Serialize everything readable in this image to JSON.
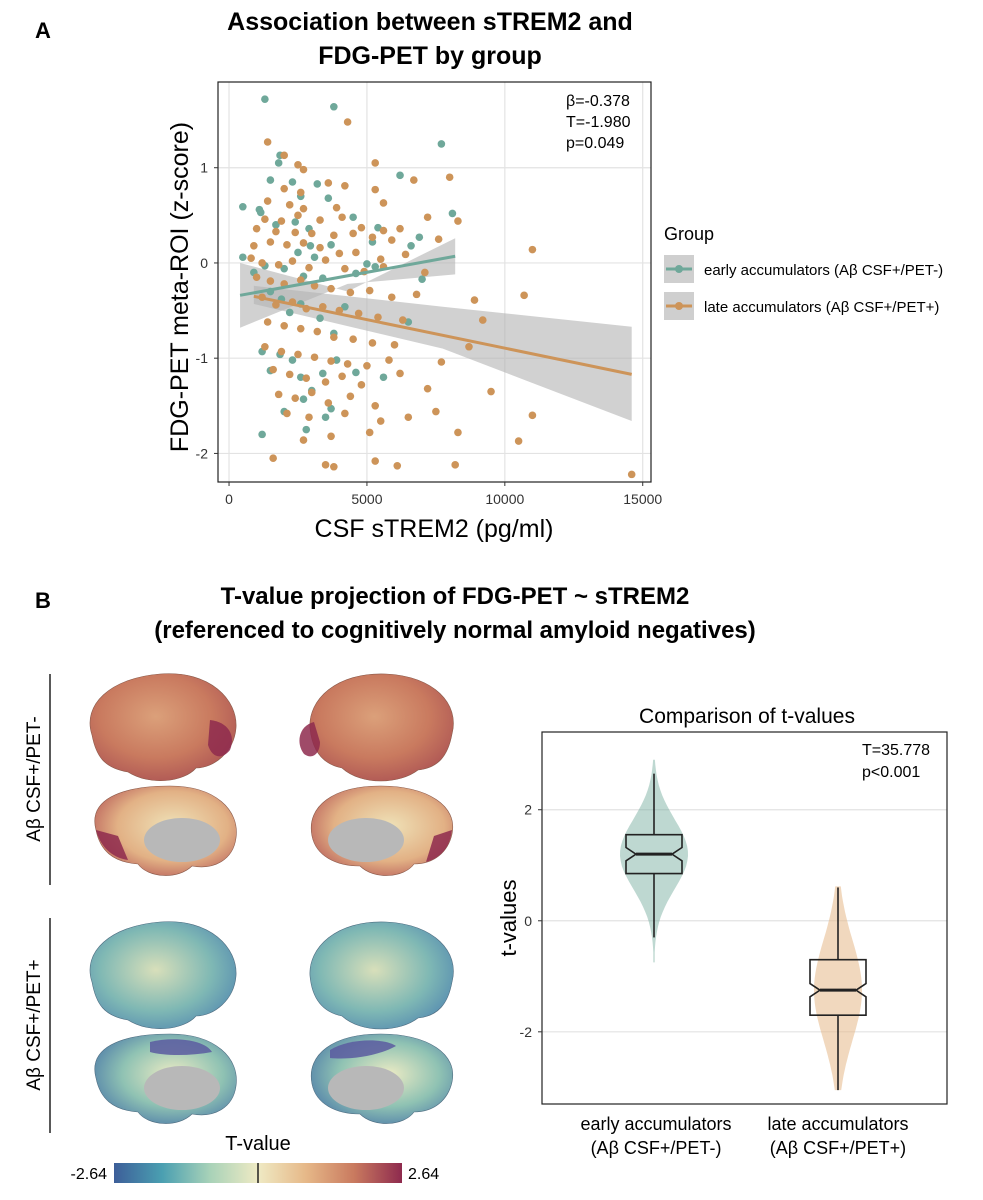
{
  "panel_a": {
    "letter": "A",
    "title_line1": "Association between sTREM2 and",
    "title_line2": "FDG-PET by group",
    "stats": [
      "β=-0.378",
      "T=-1.980",
      "p=0.049"
    ],
    "legend_title": "Group",
    "colors": {
      "early": "#6fa89a",
      "late": "#cd9459",
      "band": "#b3b3b3"
    }
  },
  "panel_b": {
    "letter": "B",
    "title_line1": "T-value projection of FDG-PET ~ sTREM2",
    "title_line2": "(referenced to cognitively normal amyloid negatives)",
    "row_label_top": "Aβ CSF+/PET-",
    "row_label_bottom": "Aβ CSF+/PET+",
    "colorbar_label": "T-value",
    "colorbar_min": "-2.64",
    "colorbar_max": "2.64",
    "colorbar_colors": [
      "#3d5e99",
      "#4a9fb1",
      "#a8d2b8",
      "#efeac4",
      "#e6b888",
      "#c97a5f",
      "#8e2a4e"
    ]
  },
  "chart_data": [
    {
      "type": "scatter",
      "title": "Association between sTREM2 and FDG-PET by group",
      "xlabel": "CSF sTREM2 (pg/ml)",
      "ylabel": "FDG-PET meta-ROI (z-score)",
      "xlim": [
        -400,
        15300
      ],
      "ylim": [
        -2.3,
        1.9
      ],
      "xticks": [
        0,
        5000,
        10000,
        15000
      ],
      "yticks": [
        -2,
        -1,
        0,
        1
      ],
      "grid": true,
      "legend_title": "Group",
      "legend_position": "right",
      "annotation": [
        "β=-0.378",
        "T=-1.980",
        "p=0.049"
      ],
      "series": [
        {
          "name": "early accumulators (Aβ CSF+/PET-)",
          "color": "#6fa89a",
          "fit": {
            "x": [
              400,
              8200
            ],
            "y": [
              -0.34,
              0.07
            ],
            "band_lo": [
              -0.68,
              -0.12
            ],
            "band_hi": [
              0.0,
              0.26
            ],
            "band_mid": [
              -0.3,
              -0.22
            ]
          },
          "points": [
            [
              1300,
              1.72
            ],
            [
              3800,
              1.64
            ],
            [
              7700,
              1.25
            ],
            [
              1850,
              1.13
            ],
            [
              1800,
              1.05
            ],
            [
              1500,
              0.87
            ],
            [
              2300,
              0.85
            ],
            [
              2600,
              0.7
            ],
            [
              3200,
              0.83
            ],
            [
              6200,
              0.92
            ],
            [
              3600,
              0.68
            ],
            [
              500,
              0.59
            ],
            [
              1100,
              0.56
            ],
            [
              1150,
              0.53
            ],
            [
              1700,
              0.4
            ],
            [
              2400,
              0.43
            ],
            [
              2900,
              0.36
            ],
            [
              8100,
              0.52
            ],
            [
              4500,
              0.48
            ],
            [
              5400,
              0.37
            ],
            [
              5200,
              0.22
            ],
            [
              6600,
              0.18
            ],
            [
              3700,
              0.19
            ],
            [
              2500,
              0.11
            ],
            [
              2950,
              0.18
            ],
            [
              3100,
              0.06
            ],
            [
              1300,
              -0.03
            ],
            [
              2000,
              -0.06
            ],
            [
              900,
              -0.1
            ],
            [
              2700,
              -0.14
            ],
            [
              3400,
              -0.16
            ],
            [
              4600,
              -0.11
            ],
            [
              5000,
              -0.01
            ],
            [
              5300,
              -0.04
            ],
            [
              6900,
              0.27
            ],
            [
              7000,
              -0.17
            ],
            [
              500,
              0.06
            ],
            [
              1500,
              -0.3
            ],
            [
              1900,
              -0.38
            ],
            [
              2200,
              -0.52
            ],
            [
              2600,
              -0.43
            ],
            [
              3300,
              -0.58
            ],
            [
              3800,
              -0.74
            ],
            [
              4200,
              -0.46
            ],
            [
              6500,
              -0.62
            ],
            [
              1200,
              -0.93
            ],
            [
              1850,
              -0.96
            ],
            [
              2300,
              -1.02
            ],
            [
              2600,
              -1.2
            ],
            [
              3000,
              -1.34
            ],
            [
              3400,
              -1.16
            ],
            [
              3900,
              -1.02
            ],
            [
              4600,
              -1.15
            ],
            [
              5600,
              -1.2
            ],
            [
              1500,
              -1.13
            ],
            [
              2700,
              -1.43
            ],
            [
              3700,
              -1.53
            ],
            [
              2000,
              -1.56
            ],
            [
              2800,
              -1.75
            ],
            [
              3500,
              -1.62
            ],
            [
              1200,
              -1.8
            ]
          ]
        },
        {
          "name": "late accumulators (Aβ CSF+/PET+)",
          "color": "#cd9459",
          "fit": {
            "x": [
              900,
              14600
            ],
            "y": [
              -0.35,
              -1.17
            ],
            "band_lo": [
              -0.43,
              -1.66
            ],
            "band_hi": [
              -0.24,
              -0.67
            ],
            "band_mid": [
              -0.46,
              -0.9
            ]
          },
          "points": [
            [
              4300,
              1.48
            ],
            [
              1400,
              1.27
            ],
            [
              2000,
              1.13
            ],
            [
              2500,
              1.03
            ],
            [
              2700,
              0.98
            ],
            [
              5300,
              1.05
            ],
            [
              6700,
              0.87
            ],
            [
              8000,
              0.9
            ],
            [
              2000,
              0.78
            ],
            [
              2600,
              0.74
            ],
            [
              3600,
              0.84
            ],
            [
              4200,
              0.81
            ],
            [
              5300,
              0.77
            ],
            [
              1400,
              0.65
            ],
            [
              2200,
              0.61
            ],
            [
              2700,
              0.57
            ],
            [
              3900,
              0.58
            ],
            [
              5600,
              0.63
            ],
            [
              7200,
              0.48
            ],
            [
              1300,
              0.46
            ],
            [
              1900,
              0.44
            ],
            [
              2500,
              0.5
            ],
            [
              3300,
              0.45
            ],
            [
              4100,
              0.48
            ],
            [
              4800,
              0.37
            ],
            [
              5600,
              0.34
            ],
            [
              6200,
              0.36
            ],
            [
              8300,
              0.44
            ],
            [
              1000,
              0.36
            ],
            [
              1700,
              0.33
            ],
            [
              2400,
              0.32
            ],
            [
              3000,
              0.31
            ],
            [
              3800,
              0.29
            ],
            [
              4500,
              0.31
            ],
            [
              5200,
              0.27
            ],
            [
              5900,
              0.24
            ],
            [
              7600,
              0.25
            ],
            [
              11000,
              0.14
            ],
            [
              900,
              0.18
            ],
            [
              1500,
              0.22
            ],
            [
              2100,
              0.19
            ],
            [
              2700,
              0.21
            ],
            [
              3300,
              0.16
            ],
            [
              4000,
              0.1
            ],
            [
              4600,
              0.11
            ],
            [
              5500,
              0.04
            ],
            [
              6400,
              0.09
            ],
            [
              800,
              0.05
            ],
            [
              1200,
              0.0
            ],
            [
              1800,
              -0.02
            ],
            [
              2300,
              0.02
            ],
            [
              2900,
              -0.05
            ],
            [
              3500,
              0.03
            ],
            [
              4200,
              -0.06
            ],
            [
              4900,
              -0.09
            ],
            [
              5600,
              -0.04
            ],
            [
              7100,
              -0.1
            ],
            [
              10700,
              -0.34
            ],
            [
              1000,
              -0.15
            ],
            [
              1500,
              -0.19
            ],
            [
              2000,
              -0.22
            ],
            [
              2600,
              -0.18
            ],
            [
              3100,
              -0.24
            ],
            [
              3700,
              -0.27
            ],
            [
              4400,
              -0.31
            ],
            [
              5100,
              -0.29
            ],
            [
              5900,
              -0.36
            ],
            [
              6800,
              -0.33
            ],
            [
              8900,
              -0.39
            ],
            [
              1200,
              -0.36
            ],
            [
              1700,
              -0.44
            ],
            [
              2300,
              -0.41
            ],
            [
              2800,
              -0.48
            ],
            [
              3400,
              -0.46
            ],
            [
              4000,
              -0.5
            ],
            [
              4700,
              -0.53
            ],
            [
              5400,
              -0.57
            ],
            [
              6300,
              -0.6
            ],
            [
              9200,
              -0.6
            ],
            [
              1400,
              -0.62
            ],
            [
              2000,
              -0.66
            ],
            [
              2600,
              -0.69
            ],
            [
              3200,
              -0.72
            ],
            [
              3800,
              -0.78
            ],
            [
              4500,
              -0.8
            ],
            [
              5200,
              -0.84
            ],
            [
              6000,
              -0.86
            ],
            [
              8700,
              -0.88
            ],
            [
              1300,
              -0.88
            ],
            [
              1900,
              -0.93
            ],
            [
              2500,
              -0.96
            ],
            [
              3100,
              -0.99
            ],
            [
              3700,
              -1.03
            ],
            [
              4300,
              -1.06
            ],
            [
              5000,
              -1.08
            ],
            [
              5800,
              -1.02
            ],
            [
              7700,
              -1.04
            ],
            [
              1600,
              -1.12
            ],
            [
              2200,
              -1.17
            ],
            [
              2800,
              -1.21
            ],
            [
              3500,
              -1.25
            ],
            [
              4100,
              -1.19
            ],
            [
              4800,
              -1.28
            ],
            [
              6200,
              -1.16
            ],
            [
              7200,
              -1.32
            ],
            [
              9500,
              -1.35
            ],
            [
              1800,
              -1.38
            ],
            [
              2400,
              -1.42
            ],
            [
              3000,
              -1.36
            ],
            [
              3600,
              -1.47
            ],
            [
              4400,
              -1.4
            ],
            [
              5300,
              -1.5
            ],
            [
              7500,
              -1.56
            ],
            [
              2100,
              -1.58
            ],
            [
              2900,
              -1.62
            ],
            [
              4200,
              -1.58
            ],
            [
              5500,
              -1.66
            ],
            [
              6500,
              -1.62
            ],
            [
              11000,
              -1.6
            ],
            [
              2700,
              -1.86
            ],
            [
              3700,
              -1.82
            ],
            [
              5100,
              -1.78
            ],
            [
              8300,
              -1.78
            ],
            [
              10500,
              -1.87
            ],
            [
              1600,
              -2.05
            ],
            [
              3500,
              -2.12
            ],
            [
              3800,
              -2.14
            ],
            [
              5300,
              -2.08
            ],
            [
              6100,
              -2.13
            ],
            [
              8200,
              -2.12
            ],
            [
              14600,
              -2.22
            ]
          ]
        }
      ]
    },
    {
      "type": "violin",
      "title": "Comparison of t-values",
      "xlabel": "",
      "ylabel": "t-values",
      "ylim": [
        -3.3,
        3.4
      ],
      "yticks": [
        -2,
        0,
        2
      ],
      "grid": true,
      "annotation": [
        "T=35.778",
        "p<0.001"
      ],
      "categories": [
        "early accumulators\n(Aβ CSF+/PET-)",
        "late accumulators\n(Aβ CSF+/PET+)"
      ],
      "series": [
        {
          "name": "early accumulators (Aβ CSF+/PET-)",
          "color": "#6fa89a",
          "min": -0.3,
          "q1": 0.85,
          "median": 1.2,
          "q3": 1.55,
          "max": 2.65,
          "violin_min": -0.75,
          "violin_max": 2.9
        },
        {
          "name": "late accumulators (Aβ CSF+/PET+)",
          "color": "#e6b888",
          "min": -3.05,
          "q1": -1.7,
          "median": -1.25,
          "q3": -0.7,
          "max": 0.6,
          "violin_min": -3.05,
          "violin_max": 0.62
        }
      ]
    }
  ]
}
